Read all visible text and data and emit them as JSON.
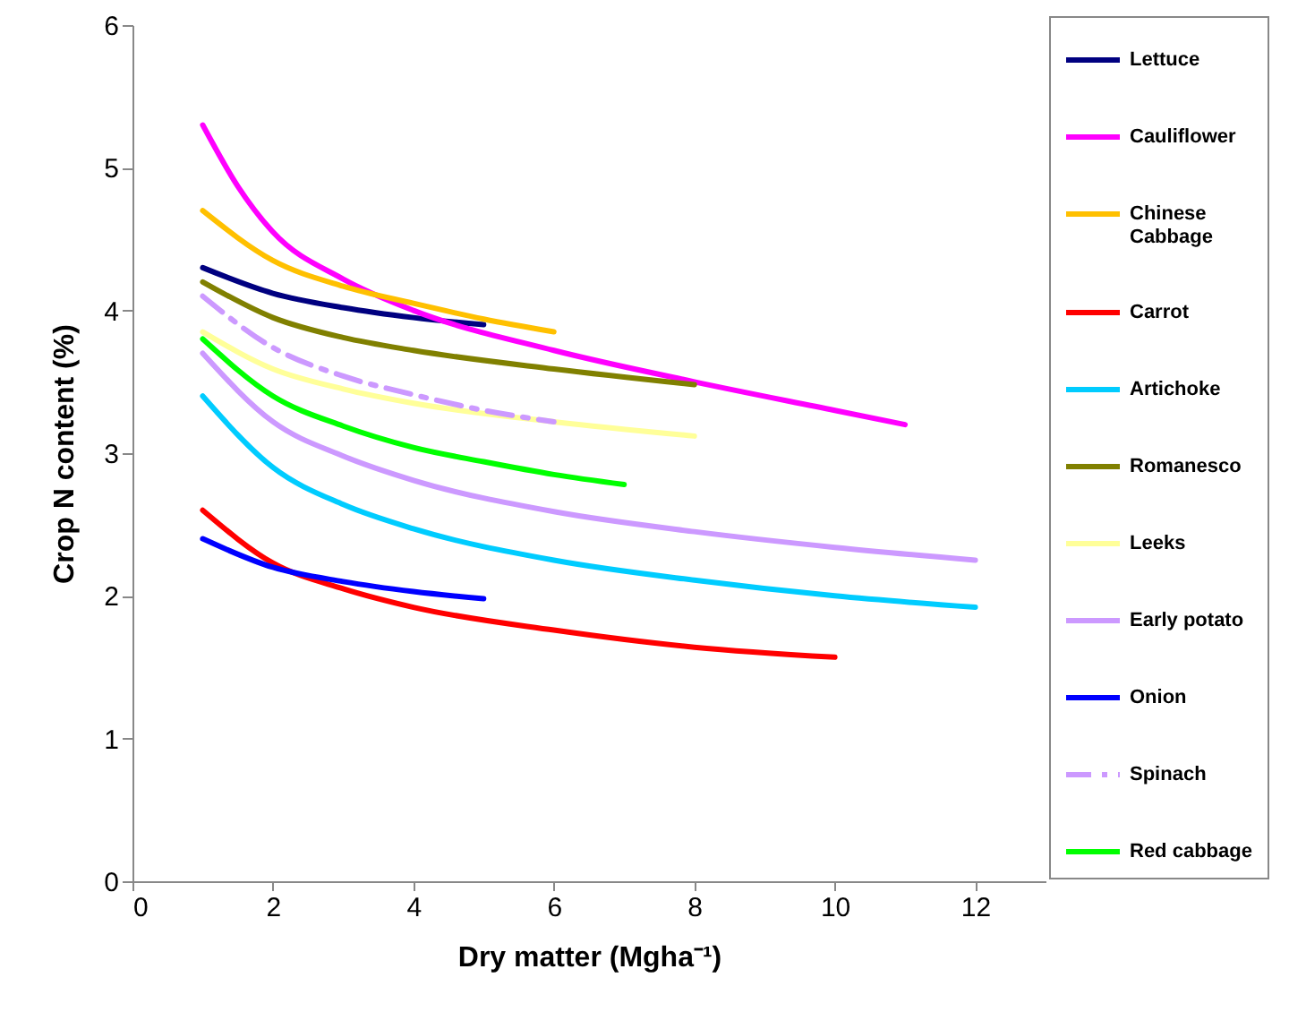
{
  "chart_data": {
    "type": "line",
    "xlabel": "Dry matter (Mgha⁻¹)",
    "ylabel": "Crop N content (%)",
    "xlim": [
      0,
      13
    ],
    "xticks": [
      0,
      2,
      4,
      6,
      8,
      10,
      12
    ],
    "ylim": [
      0,
      6
    ],
    "yticks": [
      0,
      1,
      2,
      3,
      4,
      5,
      6
    ],
    "legend": "right",
    "series": [
      {
        "name": "Lettuce",
        "color": "#000080",
        "x": [
          1,
          2,
          3,
          4,
          5
        ],
        "values": [
          4.3,
          4.12,
          4.02,
          3.95,
          3.9
        ]
      },
      {
        "name": "Cauliflower",
        "color": "#ff00ff",
        "x": [
          1,
          1.5,
          2,
          3,
          4,
          6,
          8,
          10,
          11
        ],
        "values": [
          5.3,
          4.87,
          4.55,
          4.22,
          4.0,
          3.72,
          3.5,
          3.3,
          3.2
        ]
      },
      {
        "name": "Chinese Cabbage",
        "color": "#ffc000",
        "x": [
          1,
          2,
          3,
          4,
          5,
          6
        ],
        "values": [
          4.7,
          4.35,
          4.17,
          4.05,
          3.94,
          3.85
        ]
      },
      {
        "name": "Carrot",
        "color": "#ff0000",
        "x": [
          1,
          2,
          3,
          4,
          6,
          8,
          10
        ],
        "values": [
          2.6,
          2.23,
          2.05,
          1.92,
          1.76,
          1.64,
          1.57
        ]
      },
      {
        "name": "Artichoke",
        "color": "#00ccff",
        "x": [
          1,
          2,
          3,
          4,
          6,
          8,
          10,
          12
        ],
        "values": [
          3.4,
          2.9,
          2.64,
          2.47,
          2.25,
          2.11,
          2.0,
          1.92
        ]
      },
      {
        "name": "Romanesco",
        "color": "#808000",
        "x": [
          1,
          2,
          3,
          4,
          6,
          8
        ],
        "values": [
          4.2,
          3.95,
          3.81,
          3.72,
          3.59,
          3.48
        ]
      },
      {
        "name": "Leeks",
        "color": "#ffff99",
        "x": [
          1,
          2,
          3,
          4,
          6,
          8
        ],
        "values": [
          3.85,
          3.59,
          3.45,
          3.35,
          3.22,
          3.12
        ]
      },
      {
        "name": "Early potato",
        "color": "#cc99ff",
        "x": [
          1,
          2,
          3,
          4,
          6,
          8,
          10,
          12
        ],
        "values": [
          3.7,
          3.22,
          2.98,
          2.81,
          2.59,
          2.45,
          2.34,
          2.25
        ]
      },
      {
        "name": "Onion",
        "color": "#0000ff",
        "x": [
          1,
          2,
          3,
          4,
          5
        ],
        "values": [
          2.4,
          2.2,
          2.1,
          2.03,
          1.98
        ]
      },
      {
        "name": "Spinach",
        "color": "#cc99ff",
        "line_style": "dashed",
        "x": [
          1,
          2,
          3,
          4,
          5,
          6
        ],
        "values": [
          4.1,
          3.74,
          3.54,
          3.41,
          3.3,
          3.22
        ]
      },
      {
        "name": "Red cabbage",
        "color": "#00ff00",
        "x": [
          1,
          2,
          3,
          4,
          5,
          6,
          7
        ],
        "values": [
          3.8,
          3.4,
          3.19,
          3.04,
          2.94,
          2.85,
          2.78
        ]
      }
    ]
  }
}
